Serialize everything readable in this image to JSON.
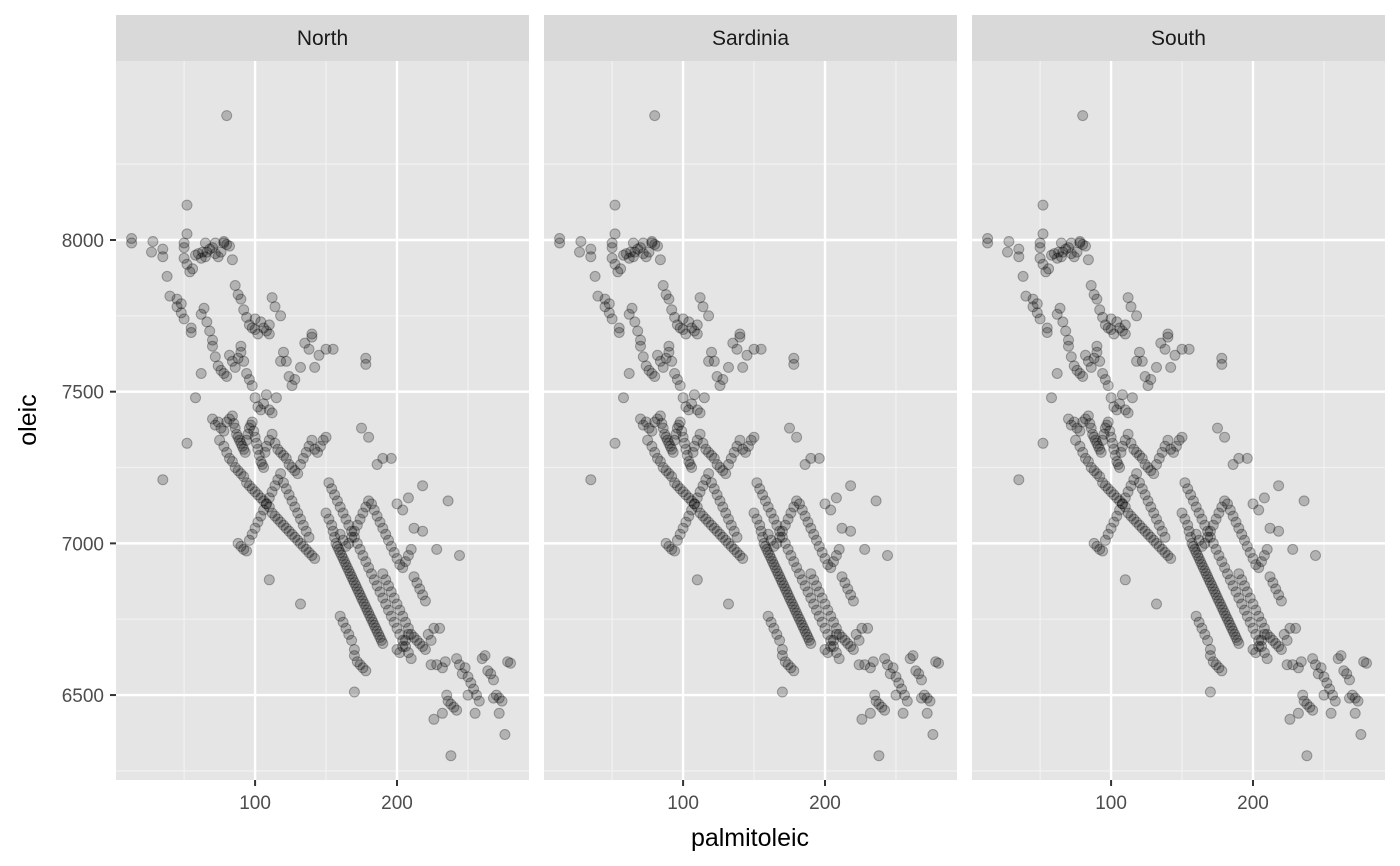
{
  "chart_data": {
    "type": "scatter",
    "facets": [
      "North",
      "Sardinia",
      "South"
    ],
    "xlabel": "palmitoleic",
    "ylabel": "oleic",
    "xlim": [
      2,
      293
    ],
    "ylim": [
      6220,
      8590
    ],
    "x_ticks": [
      100,
      200
    ],
    "x_minor_ticks": [
      50,
      150,
      250
    ],
    "y_ticks": [
      6500,
      7000,
      7500,
      8000
    ],
    "y_minor_ticks": [
      6250,
      6750,
      7250,
      7750,
      8250
    ],
    "grid": true,
    "legend": "none",
    "point_color": "#000000",
    "point_alpha": 0.22,
    "panel_background": "#e5e5e5",
    "strip_background": "#d9d9d9",
    "points": [
      [
        80,
        8410
      ],
      [
        13,
        8005
      ],
      [
        13,
        7990
      ],
      [
        28,
        7995
      ],
      [
        27,
        7960
      ],
      [
        35,
        7970
      ],
      [
        35,
        7945
      ],
      [
        38,
        7880
      ],
      [
        40,
        7815
      ],
      [
        45,
        7805
      ],
      [
        45,
        7780
      ],
      [
        48,
        7760
      ],
      [
        50,
        7740
      ],
      [
        55,
        7710
      ],
      [
        55,
        7695
      ],
      [
        48,
        7790
      ],
      [
        52,
        8115
      ],
      [
        52,
        8020
      ],
      [
        50,
        7990
      ],
      [
        50,
        7975
      ],
      [
        50,
        7940
      ],
      [
        52,
        7920
      ],
      [
        54,
        7895
      ],
      [
        56,
        7905
      ],
      [
        58,
        7950
      ],
      [
        60,
        7955
      ],
      [
        62,
        7940
      ],
      [
        63,
        7960
      ],
      [
        65,
        7990
      ],
      [
        65,
        7945
      ],
      [
        66,
        7960
      ],
      [
        68,
        7970
      ],
      [
        70,
        7975
      ],
      [
        72,
        7990
      ],
      [
        72,
        7955
      ],
      [
        74,
        7945
      ],
      [
        76,
        7960
      ],
      [
        78,
        7995
      ],
      [
        78,
        7990
      ],
      [
        80,
        7985
      ],
      [
        82,
        7980
      ],
      [
        84,
        7935
      ],
      [
        86,
        7850
      ],
      [
        88,
        7820
      ],
      [
        90,
        7805
      ],
      [
        92,
        7770
      ],
      [
        94,
        7745
      ],
      [
        96,
        7720
      ],
      [
        98,
        7710
      ],
      [
        100,
        7740
      ],
      [
        100,
        7705
      ],
      [
        102,
        7690
      ],
      [
        104,
        7730
      ],
      [
        106,
        7710
      ],
      [
        108,
        7700
      ],
      [
        110,
        7720
      ],
      [
        110,
        7690
      ],
      [
        112,
        7810
      ],
      [
        114,
        7780
      ],
      [
        118,
        7750
      ],
      [
        62,
        7755
      ],
      [
        64,
        7775
      ],
      [
        66,
        7730
      ],
      [
        68,
        7700
      ],
      [
        70,
        7670
      ],
      [
        70,
        7650
      ],
      [
        72,
        7615
      ],
      [
        74,
        7585
      ],
      [
        76,
        7570
      ],
      [
        78,
        7560
      ],
      [
        80,
        7550
      ],
      [
        82,
        7620
      ],
      [
        84,
        7600
      ],
      [
        86,
        7580
      ],
      [
        88,
        7610
      ],
      [
        90,
        7650
      ],
      [
        90,
        7630
      ],
      [
        92,
        7600
      ],
      [
        94,
        7560
      ],
      [
        96,
        7540
      ],
      [
        98,
        7520
      ],
      [
        100,
        7480
      ],
      [
        102,
        7450
      ],
      [
        104,
        7440
      ],
      [
        106,
        7460
      ],
      [
        108,
        7490
      ],
      [
        110,
        7440
      ],
      [
        112,
        7430
      ],
      [
        115,
        7480
      ],
      [
        118,
        7600
      ],
      [
        120,
        7630
      ],
      [
        122,
        7600
      ],
      [
        124,
        7550
      ],
      [
        126,
        7520
      ],
      [
        128,
        7540
      ],
      [
        132,
        7580
      ],
      [
        135,
        7660
      ],
      [
        138,
        7640
      ],
      [
        140,
        7690
      ],
      [
        140,
        7680
      ],
      [
        142,
        7580
      ],
      [
        145,
        7620
      ],
      [
        150,
        7640
      ],
      [
        155,
        7640
      ],
      [
        178,
        7610
      ],
      [
        178,
        7590
      ],
      [
        62,
        7560
      ],
      [
        58,
        7480
      ],
      [
        52,
        7330
      ],
      [
        35,
        7210
      ],
      [
        70,
        7410
      ],
      [
        72,
        7390
      ],
      [
        74,
        7400
      ],
      [
        76,
        7380
      ],
      [
        78,
        7370
      ],
      [
        80,
        7400
      ],
      [
        82,
        7410
      ],
      [
        84,
        7420
      ],
      [
        85,
        7395
      ],
      [
        86,
        7380
      ],
      [
        87,
        7360
      ],
      [
        88,
        7350
      ],
      [
        89,
        7340
      ],
      [
        90,
        7330
      ],
      [
        91,
        7320
      ],
      [
        92,
        7310
      ],
      [
        93,
        7300
      ],
      [
        94,
        7340
      ],
      [
        95,
        7360
      ],
      [
        96,
        7380
      ],
      [
        97,
        7390
      ],
      [
        98,
        7400
      ],
      [
        99,
        7370
      ],
      [
        100,
        7350
      ],
      [
        101,
        7330
      ],
      [
        102,
        7310
      ],
      [
        103,
        7290
      ],
      [
        104,
        7270
      ],
      [
        105,
        7260
      ],
      [
        106,
        7250
      ],
      [
        107,
        7300
      ],
      [
        108,
        7320
      ],
      [
        110,
        7340
      ],
      [
        112,
        7360
      ],
      [
        114,
        7330
      ],
      [
        116,
        7310
      ],
      [
        118,
        7300
      ],
      [
        120,
        7290
      ],
      [
        122,
        7280
      ],
      [
        124,
        7260
      ],
      [
        126,
        7250
      ],
      [
        128,
        7240
      ],
      [
        130,
        7230
      ],
      [
        132,
        7260
      ],
      [
        134,
        7280
      ],
      [
        136,
        7300
      ],
      [
        138,
        7320
      ],
      [
        140,
        7340
      ],
      [
        142,
        7310
      ],
      [
        144,
        7300
      ],
      [
        146,
        7320
      ],
      [
        148,
        7340
      ],
      [
        150,
        7350
      ],
      [
        75,
        7340
      ],
      [
        78,
        7320
      ],
      [
        80,
        7300
      ],
      [
        82,
        7280
      ],
      [
        84,
        7270
      ],
      [
        86,
        7250
      ],
      [
        88,
        7240
      ],
      [
        90,
        7230
      ],
      [
        92,
        7220
      ],
      [
        94,
        7200
      ],
      [
        96,
        7190
      ],
      [
        98,
        7180
      ],
      [
        100,
        7170
      ],
      [
        102,
        7160
      ],
      [
        104,
        7150
      ],
      [
        106,
        7140
      ],
      [
        108,
        7130
      ],
      [
        110,
        7120
      ],
      [
        112,
        7100
      ],
      [
        114,
        7090
      ],
      [
        116,
        7080
      ],
      [
        118,
        7070
      ],
      [
        120,
        7060
      ],
      [
        122,
        7050
      ],
      [
        124,
        7040
      ],
      [
        126,
        7030
      ],
      [
        128,
        7020
      ],
      [
        130,
        7010
      ],
      [
        132,
        7000
      ],
      [
        134,
        6990
      ],
      [
        136,
        6980
      ],
      [
        138,
        6970
      ],
      [
        140,
        6960
      ],
      [
        142,
        6950
      ],
      [
        88,
        7000
      ],
      [
        90,
        6990
      ],
      [
        92,
        6980
      ],
      [
        94,
        6975
      ],
      [
        96,
        7010
      ],
      [
        98,
        7030
      ],
      [
        100,
        7050
      ],
      [
        102,
        7070
      ],
      [
        104,
        7090
      ],
      [
        106,
        7110
      ],
      [
        108,
        7130
      ],
      [
        110,
        7150
      ],
      [
        112,
        7170
      ],
      [
        114,
        7190
      ],
      [
        116,
        7210
      ],
      [
        118,
        7230
      ],
      [
        120,
        7200
      ],
      [
        122,
        7180
      ],
      [
        124,
        7160
      ],
      [
        126,
        7140
      ],
      [
        128,
        7120
      ],
      [
        130,
        7100
      ],
      [
        132,
        7080
      ],
      [
        134,
        7060
      ],
      [
        136,
        7040
      ],
      [
        138,
        7020
      ],
      [
        110,
        6880
      ],
      [
        132,
        6800
      ],
      [
        150,
        7100
      ],
      [
        152,
        7080
      ],
      [
        154,
        7060
      ],
      [
        155,
        7040
      ],
      [
        156,
        7020
      ],
      [
        157,
        7000
      ],
      [
        158,
        6990
      ],
      [
        159,
        6980
      ],
      [
        160,
        6970
      ],
      [
        161,
        6960
      ],
      [
        162,
        6950
      ],
      [
        163,
        6940
      ],
      [
        164,
        6930
      ],
      [
        165,
        6920
      ],
      [
        166,
        6910
      ],
      [
        167,
        6900
      ],
      [
        168,
        6890
      ],
      [
        169,
        6880
      ],
      [
        170,
        6870
      ],
      [
        171,
        6860
      ],
      [
        172,
        6850
      ],
      [
        173,
        6840
      ],
      [
        174,
        6830
      ],
      [
        175,
        6820
      ],
      [
        176,
        6810
      ],
      [
        177,
        6800
      ],
      [
        178,
        6790
      ],
      [
        179,
        6780
      ],
      [
        180,
        6770
      ],
      [
        181,
        6760
      ],
      [
        182,
        6750
      ],
      [
        183,
        6740
      ],
      [
        184,
        6730
      ],
      [
        185,
        6720
      ],
      [
        186,
        6710
      ],
      [
        187,
        6700
      ],
      [
        188,
        6690
      ],
      [
        189,
        6680
      ],
      [
        190,
        6670
      ],
      [
        152,
        7200
      ],
      [
        154,
        7180
      ],
      [
        156,
        7160
      ],
      [
        158,
        7140
      ],
      [
        160,
        7120
      ],
      [
        162,
        7100
      ],
      [
        164,
        7080
      ],
      [
        166,
        7060
      ],
      [
        168,
        7040
      ],
      [
        170,
        7020
      ],
      [
        172,
        7000
      ],
      [
        174,
        6980
      ],
      [
        176,
        6960
      ],
      [
        178,
        6940
      ],
      [
        180,
        6920
      ],
      [
        182,
        6900
      ],
      [
        184,
        6880
      ],
      [
        186,
        6860
      ],
      [
        188,
        6840
      ],
      [
        190,
        6820
      ],
      [
        192,
        6800
      ],
      [
        194,
        6780
      ],
      [
        196,
        6760
      ],
      [
        198,
        6740
      ],
      [
        200,
        6720
      ],
      [
        202,
        6700
      ],
      [
        204,
        6680
      ],
      [
        206,
        6660
      ],
      [
        208,
        6640
      ],
      [
        210,
        6620
      ],
      [
        160,
        7030
      ],
      [
        162,
        7010
      ],
      [
        164,
        6990
      ],
      [
        166,
        7000
      ],
      [
        168,
        7020
      ],
      [
        170,
        7040
      ],
      [
        172,
        7060
      ],
      [
        174,
        7080
      ],
      [
        176,
        7100
      ],
      [
        178,
        7120
      ],
      [
        180,
        7140
      ],
      [
        182,
        7130
      ],
      [
        184,
        7110
      ],
      [
        186,
        7090
      ],
      [
        188,
        7070
      ],
      [
        190,
        7050
      ],
      [
        192,
        7030
      ],
      [
        194,
        7010
      ],
      [
        196,
        6990
      ],
      [
        198,
        6970
      ],
      [
        200,
        6950
      ],
      [
        202,
        6930
      ],
      [
        204,
        6920
      ],
      [
        206,
        6940
      ],
      [
        208,
        6960
      ],
      [
        210,
        6980
      ],
      [
        212,
        6890
      ],
      [
        214,
        6870
      ],
      [
        216,
        6850
      ],
      [
        218,
        6830
      ],
      [
        220,
        6810
      ],
      [
        200,
        6650
      ],
      [
        202,
        6640
      ],
      [
        204,
        6660
      ],
      [
        206,
        6680
      ],
      [
        208,
        6700
      ],
      [
        160,
        6760
      ],
      [
        162,
        6740
      ],
      [
        164,
        6720
      ],
      [
        166,
        6700
      ],
      [
        168,
        6680
      ],
      [
        170,
        6650
      ],
      [
        170,
        6630
      ],
      [
        172,
        6610
      ],
      [
        174,
        6600
      ],
      [
        176,
        6590
      ],
      [
        178,
        6580
      ],
      [
        190,
        6900
      ],
      [
        192,
        6880
      ],
      [
        194,
        6860
      ],
      [
        196,
        6840
      ],
      [
        198,
        6820
      ],
      [
        200,
        6800
      ],
      [
        202,
        6780
      ],
      [
        204,
        6760
      ],
      [
        206,
        6740
      ],
      [
        208,
        6720
      ],
      [
        210,
        6700
      ],
      [
        212,
        6690
      ],
      [
        214,
        6680
      ],
      [
        216,
        6670
      ],
      [
        218,
        6660
      ],
      [
        220,
        6650
      ],
      [
        170,
        6510
      ],
      [
        175,
        7380
      ],
      [
        180,
        7350
      ],
      [
        186,
        7260
      ],
      [
        190,
        7280
      ],
      [
        196,
        7280
      ],
      [
        200,
        7130
      ],
      [
        204,
        7110
      ],
      [
        208,
        7150
      ],
      [
        212,
        7050
      ],
      [
        218,
        7190
      ],
      [
        218,
        7040
      ],
      [
        222,
        6700
      ],
      [
        224,
        6680
      ],
      [
        226,
        6720
      ],
      [
        228,
        6600
      ],
      [
        230,
        6720
      ],
      [
        232,
        6590
      ],
      [
        234,
        6610
      ],
      [
        235,
        6500
      ],
      [
        236,
        6480
      ],
      [
        238,
        6470
      ],
      [
        240,
        6460
      ],
      [
        242,
        6450
      ],
      [
        244,
        6600
      ],
      [
        246,
        6570
      ],
      [
        248,
        6590
      ],
      [
        250,
        6560
      ],
      [
        252,
        6540
      ],
      [
        254,
        6520
      ],
      [
        256,
        6500
      ],
      [
        258,
        6480
      ],
      [
        260,
        6620
      ],
      [
        262,
        6630
      ],
      [
        264,
        6580
      ],
      [
        266,
        6570
      ],
      [
        268,
        6550
      ],
      [
        270,
        6500
      ],
      [
        272,
        6490
      ],
      [
        274,
        6480
      ],
      [
        276,
        6370
      ],
      [
        278,
        6610
      ],
      [
        280,
        6605
      ],
      [
        226,
        6420
      ],
      [
        232,
        6440
      ],
      [
        238,
        6300
      ],
      [
        244,
        6960
      ],
      [
        250,
        6500
      ],
      [
        255,
        6440
      ],
      [
        268,
        6490
      ],
      [
        272,
        6440
      ],
      [
        224,
        6600
      ],
      [
        228,
        6980
      ],
      [
        236,
        7140
      ],
      [
        242,
        6620
      ]
    ]
  }
}
